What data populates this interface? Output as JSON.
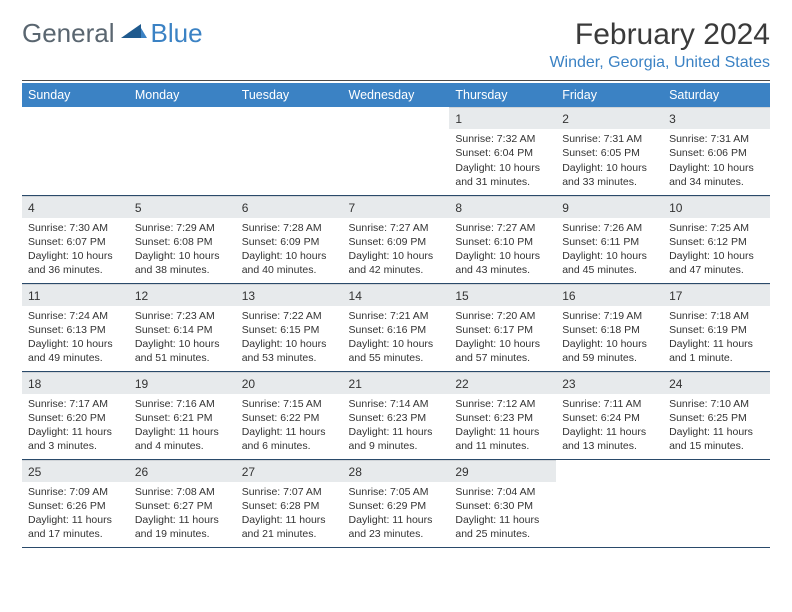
{
  "brand": {
    "word1": "General",
    "word2": "Blue"
  },
  "title": "February 2024",
  "location": "Winder, Georgia, United States",
  "colors": {
    "header_bg": "#3b82c4",
    "header_text": "#ffffff",
    "daynum_bg": "#e7eaec",
    "rule": "#2a4a6a",
    "brand_gray": "#5a6670",
    "brand_blue": "#3b82c4"
  },
  "day_headers": [
    "Sunday",
    "Monday",
    "Tuesday",
    "Wednesday",
    "Thursday",
    "Friday",
    "Saturday"
  ],
  "weeks": [
    [
      null,
      null,
      null,
      null,
      {
        "n": "1",
        "sunrise": "7:32 AM",
        "sunset": "6:04 PM",
        "daylight": "10 hours and 31 minutes."
      },
      {
        "n": "2",
        "sunrise": "7:31 AM",
        "sunset": "6:05 PM",
        "daylight": "10 hours and 33 minutes."
      },
      {
        "n": "3",
        "sunrise": "7:31 AM",
        "sunset": "6:06 PM",
        "daylight": "10 hours and 34 minutes."
      }
    ],
    [
      {
        "n": "4",
        "sunrise": "7:30 AM",
        "sunset": "6:07 PM",
        "daylight": "10 hours and 36 minutes."
      },
      {
        "n": "5",
        "sunrise": "7:29 AM",
        "sunset": "6:08 PM",
        "daylight": "10 hours and 38 minutes."
      },
      {
        "n": "6",
        "sunrise": "7:28 AM",
        "sunset": "6:09 PM",
        "daylight": "10 hours and 40 minutes."
      },
      {
        "n": "7",
        "sunrise": "7:27 AM",
        "sunset": "6:09 PM",
        "daylight": "10 hours and 42 minutes."
      },
      {
        "n": "8",
        "sunrise": "7:27 AM",
        "sunset": "6:10 PM",
        "daylight": "10 hours and 43 minutes."
      },
      {
        "n": "9",
        "sunrise": "7:26 AM",
        "sunset": "6:11 PM",
        "daylight": "10 hours and 45 minutes."
      },
      {
        "n": "10",
        "sunrise": "7:25 AM",
        "sunset": "6:12 PM",
        "daylight": "10 hours and 47 minutes."
      }
    ],
    [
      {
        "n": "11",
        "sunrise": "7:24 AM",
        "sunset": "6:13 PM",
        "daylight": "10 hours and 49 minutes."
      },
      {
        "n": "12",
        "sunrise": "7:23 AM",
        "sunset": "6:14 PM",
        "daylight": "10 hours and 51 minutes."
      },
      {
        "n": "13",
        "sunrise": "7:22 AM",
        "sunset": "6:15 PM",
        "daylight": "10 hours and 53 minutes."
      },
      {
        "n": "14",
        "sunrise": "7:21 AM",
        "sunset": "6:16 PM",
        "daylight": "10 hours and 55 minutes."
      },
      {
        "n": "15",
        "sunrise": "7:20 AM",
        "sunset": "6:17 PM",
        "daylight": "10 hours and 57 minutes."
      },
      {
        "n": "16",
        "sunrise": "7:19 AM",
        "sunset": "6:18 PM",
        "daylight": "10 hours and 59 minutes."
      },
      {
        "n": "17",
        "sunrise": "7:18 AM",
        "sunset": "6:19 PM",
        "daylight": "11 hours and 1 minute."
      }
    ],
    [
      {
        "n": "18",
        "sunrise": "7:17 AM",
        "sunset": "6:20 PM",
        "daylight": "11 hours and 3 minutes."
      },
      {
        "n": "19",
        "sunrise": "7:16 AM",
        "sunset": "6:21 PM",
        "daylight": "11 hours and 4 minutes."
      },
      {
        "n": "20",
        "sunrise": "7:15 AM",
        "sunset": "6:22 PM",
        "daylight": "11 hours and 6 minutes."
      },
      {
        "n": "21",
        "sunrise": "7:14 AM",
        "sunset": "6:23 PM",
        "daylight": "11 hours and 9 minutes."
      },
      {
        "n": "22",
        "sunrise": "7:12 AM",
        "sunset": "6:23 PM",
        "daylight": "11 hours and 11 minutes."
      },
      {
        "n": "23",
        "sunrise": "7:11 AM",
        "sunset": "6:24 PM",
        "daylight": "11 hours and 13 minutes."
      },
      {
        "n": "24",
        "sunrise": "7:10 AM",
        "sunset": "6:25 PM",
        "daylight": "11 hours and 15 minutes."
      }
    ],
    [
      {
        "n": "25",
        "sunrise": "7:09 AM",
        "sunset": "6:26 PM",
        "daylight": "11 hours and 17 minutes."
      },
      {
        "n": "26",
        "sunrise": "7:08 AM",
        "sunset": "6:27 PM",
        "daylight": "11 hours and 19 minutes."
      },
      {
        "n": "27",
        "sunrise": "7:07 AM",
        "sunset": "6:28 PM",
        "daylight": "11 hours and 21 minutes."
      },
      {
        "n": "28",
        "sunrise": "7:05 AM",
        "sunset": "6:29 PM",
        "daylight": "11 hours and 23 minutes."
      },
      {
        "n": "29",
        "sunrise": "7:04 AM",
        "sunset": "6:30 PM",
        "daylight": "11 hours and 25 minutes."
      },
      null,
      null
    ]
  ],
  "labels": {
    "sunrise": "Sunrise: ",
    "sunset": "Sunset: ",
    "daylight": "Daylight: "
  }
}
